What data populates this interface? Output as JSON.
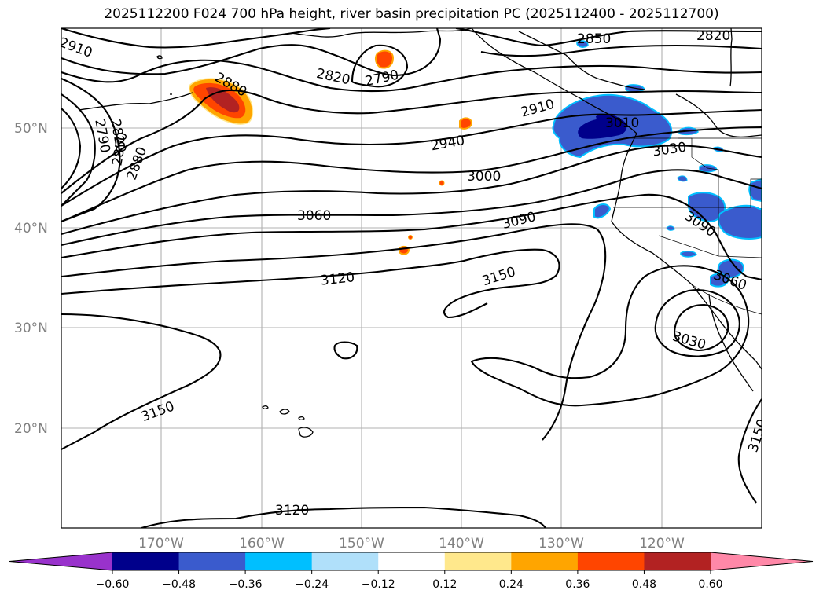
{
  "title": "2025112200 F024 700 hPa height, river basin precipitation PC (2025112400 - 2025112700)",
  "map": {
    "projection": "PlateCarree",
    "lon_range": [
      -180,
      -110
    ],
    "lat_range": [
      10,
      60
    ],
    "lat_ticks": [
      "50°N",
      "40°N",
      "30°N",
      "20°N"
    ],
    "lon_ticks": [
      "170°W",
      "160°W",
      "150°W",
      "140°W",
      "130°W",
      "120°W"
    ],
    "grid": true
  },
  "contour_labels": [
    "2910",
    "2850",
    "2820",
    "2820",
    "2790",
    "2880",
    "2790",
    "2820",
    "2850",
    "2880",
    "2910",
    "2940",
    "3000",
    "3030",
    "3010",
    "3060",
    "3090",
    "3090",
    "3120",
    "3150",
    "3060",
    "3030",
    "3150",
    "3150",
    "3120"
  ],
  "precip_pc": {
    "colorbar_ticks": [
      "−0.60",
      "−0.48",
      "−0.36",
      "−0.24",
      "−0.12",
      "0.12",
      "0.24",
      "0.36",
      "0.48",
      "0.60"
    ],
    "colors": [
      "#9932cc",
      "#00008b",
      "#3a5bcd",
      "#00bfff",
      "#b0e0fa",
      "#ffffff",
      "#ffe88c",
      "#ffa500",
      "#ff4500",
      "#b22222",
      "#ff88a8"
    ],
    "extend": "both"
  }
}
